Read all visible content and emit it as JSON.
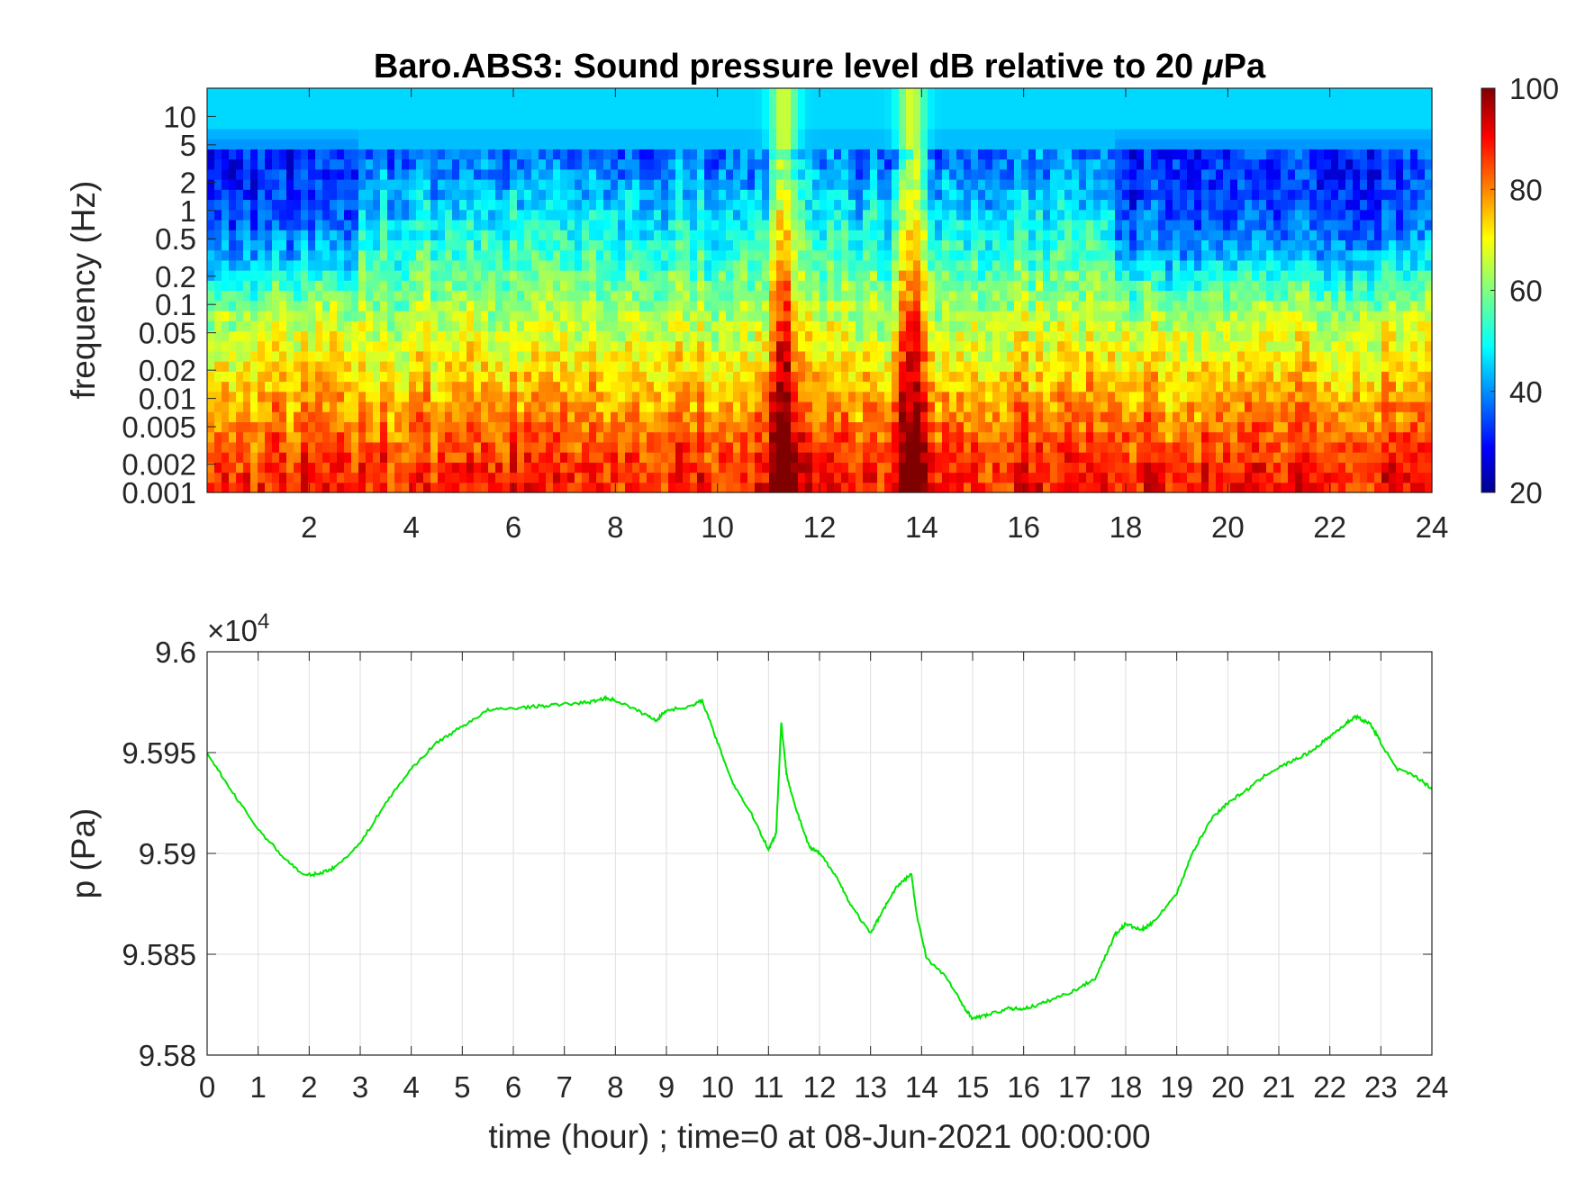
{
  "figure": {
    "title": "Baro.ABS3: Sound pressure level dB relative to 20 μPa",
    "colormap": "jet"
  },
  "chart_data": [
    {
      "type": "heatmap",
      "title": "Baro.ABS3: Sound pressure level dB relative to 20 μPa",
      "xlabel": "",
      "ylabel": "frequency (Hz)",
      "x_scale": "linear",
      "y_scale": "log",
      "xlim": [
        0,
        24
      ],
      "ylim": [
        0.001,
        20
      ],
      "x_ticks": [
        "2",
        "4",
        "6",
        "8",
        "10",
        "12",
        "14",
        "16",
        "18",
        "20",
        "22",
        "24"
      ],
      "y_ticks": [
        "0.001",
        "0.002",
        "0.005",
        "0.01",
        "0.02",
        "0.05",
        "0.1",
        "0.2",
        "0.5",
        "1",
        "2",
        "5",
        "10"
      ],
      "colorbar": {
        "range": [
          20,
          100
        ],
        "ticks": [
          "20",
          "40",
          "60",
          "80",
          "100"
        ],
        "colormap": "jet"
      },
      "grid": false,
      "events": [
        {
          "time_hour": 11.3,
          "description": "broadband high level"
        },
        {
          "time_hour": 13.8,
          "description": "broadband high level"
        }
      ],
      "quiet_periods_hour": [
        [
          0,
          3
        ],
        [
          17.8,
          24
        ]
      ]
    },
    {
      "type": "line",
      "title": "",
      "xlabel": "time (hour) ; time=0 at 08-Jun-2021 00:00:00",
      "ylabel": "p (Pa)",
      "y_exponent_label": "×10",
      "y_exponent_power": "4",
      "xlim": [
        0,
        24
      ],
      "ylim": [
        95800,
        96000
      ],
      "x_ticks": [
        "0",
        "1",
        "2",
        "3",
        "4",
        "5",
        "6",
        "7",
        "8",
        "9",
        "10",
        "11",
        "12",
        "13",
        "14",
        "15",
        "16",
        "17",
        "18",
        "19",
        "20",
        "21",
        "22",
        "23",
        "24"
      ],
      "y_ticks": [
        "9.58",
        "9.585",
        "9.59",
        "9.595",
        "9.6"
      ],
      "grid": true,
      "line_color": "#00e600",
      "series": [
        {
          "x": [
            0,
            0.5,
            1.0,
            1.5,
            1.9,
            2.2,
            2.5,
            3.0,
            3.5,
            4.0,
            4.5,
            5.0,
            5.5,
            6.0,
            6.5,
            7.0,
            7.5,
            7.8,
            8.0,
            8.5,
            8.8,
            9.0,
            9.5,
            9.7,
            10.0,
            10.3,
            10.7,
            11.0,
            11.15,
            11.25,
            11.35,
            11.5,
            11.8,
            12.0,
            12.3,
            12.6,
            13.0,
            13.2,
            13.5,
            13.8,
            13.9,
            14.1,
            14.5,
            14.8,
            15.0,
            15.3,
            15.7,
            16.0,
            16.3,
            16.6,
            17.0,
            17.4,
            17.8,
            18.0,
            18.3,
            18.5,
            19.0,
            19.3,
            19.7,
            20.0,
            20.4,
            20.8,
            21.2,
            21.6,
            22.0,
            22.3,
            22.5,
            22.8,
            23.0,
            23.3,
            23.7,
            24.0
          ],
          "y": [
            95950,
            95930,
            95912,
            95898,
            95889,
            95890,
            95893,
            95905,
            95925,
            95942,
            95955,
            95963,
            95971,
            95972,
            95973,
            95974,
            95975,
            95977,
            95976,
            95970,
            95966,
            95971,
            95973,
            95976,
            95955,
            95935,
            95918,
            95902,
            95910,
            95965,
            95940,
            95925,
            95903,
            95900,
            95890,
            95875,
            95860,
            95870,
            95883,
            95890,
            95870,
            95848,
            95838,
            95825,
            95818,
            95820,
            95823,
            95823,
            95825,
            95828,
            95832,
            95838,
            95860,
            95865,
            95862,
            95865,
            95880,
            95900,
            95918,
            95925,
            95932,
            95940,
            95945,
            95950,
            95958,
            95964,
            95968,
            95964,
            95955,
            95942,
            95938,
            95932
          ]
        }
      ]
    }
  ]
}
